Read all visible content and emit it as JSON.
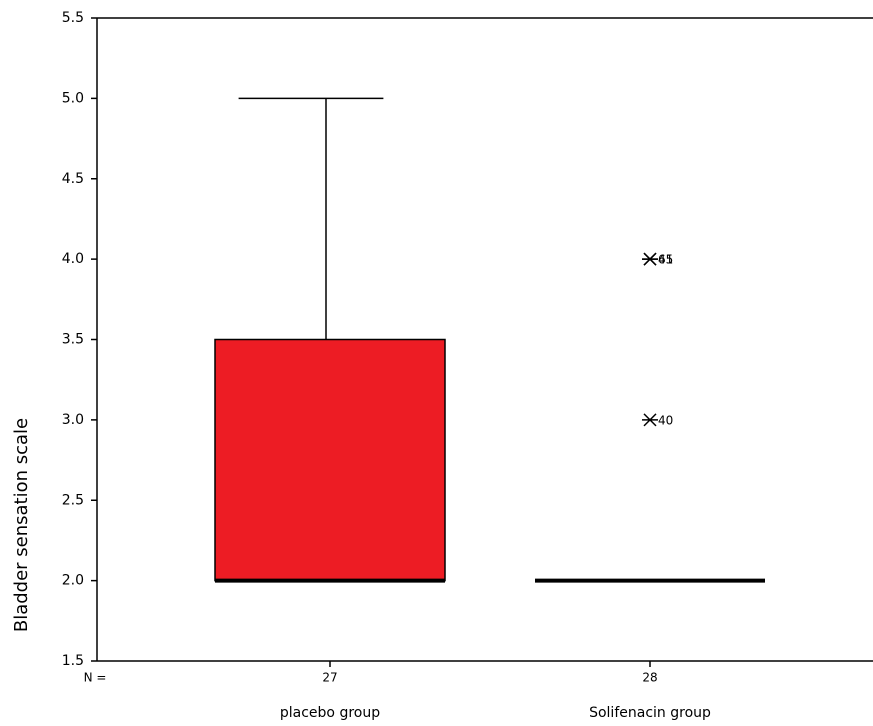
{
  "chart_data": {
    "type": "boxplot",
    "y_label": "Bladder sensation scale",
    "categories": [
      "placebo group",
      "Solifenacin group"
    ],
    "n_label": "N =",
    "n": [
      27,
      28
    ],
    "series": [
      {
        "color": "#ed1c24",
        "min": 2.0,
        "q1": 2.0,
        "median": 2.0,
        "q3": 3.5,
        "max": 5.0,
        "outliers": []
      },
      {
        "color": "#ed1c24",
        "min": 2.0,
        "q1": 2.0,
        "median": 2.0,
        "q3": 2.0,
        "max": 2.0,
        "outliers": [
          {
            "value": 4.0,
            "label": "45"
          },
          {
            "value": 4.0,
            "label": "61"
          },
          {
            "value": 3.0,
            "label": "40"
          }
        ]
      }
    ],
    "ylim": [
      1.5,
      5.5
    ],
    "yticks": [
      1.5,
      {
        "value": 2.0,
        "label": "2.0"
      },
      2.5,
      {
        "value": 3.0,
        "label": "3.0"
      },
      3.5,
      {
        "value": 4.0,
        "label": "4.0"
      },
      4.5,
      {
        "value": 5.0,
        "label": "5.0"
      },
      5.5
    ]
  }
}
